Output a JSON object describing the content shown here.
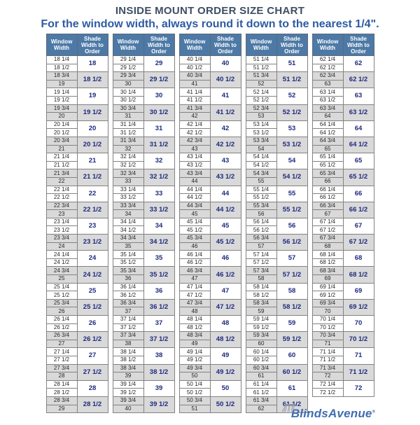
{
  "logo": {
    "name": "BlindsAvenue",
    "registered": "®"
  },
  "colors": {
    "title_text": "#3f4d63",
    "subtitle_text": "#2d5ba3",
    "header_bg": "#4d79a6",
    "header_text": "#ffffff",
    "row_alt_bg": "#d9d9d9",
    "row_bg": "#ffffff",
    "window_text": "#262626",
    "shade_text": "#1f2a7d",
    "border": "#828282",
    "logo_blue": "#3e6db1",
    "logo_roof_gray": "#b3b9c0"
  },
  "chart_data": {
    "type": "table",
    "title": "INSIDE MOUNT ORDER SIZE CHART",
    "note": "For the window width, always round it down to the nearest 1/4\".",
    "column_headers": [
      "Window Width",
      "Shade Width to Order"
    ],
    "layout": {
      "groups": 5,
      "rows_per_shade": 2,
      "alternating_shaded_rows": true
    },
    "columns": [
      {
        "rows": [
          {
            "w": [
              "18 1/4",
              "18 1/2"
            ],
            "s": "18"
          },
          {
            "w": [
              "18 3/4",
              "19"
            ],
            "s": "18 1/2"
          },
          {
            "w": [
              "19 1/4",
              "19 1/2"
            ],
            "s": "19"
          },
          {
            "w": [
              "19 3/4",
              "20"
            ],
            "s": "19 1/2"
          },
          {
            "w": [
              "20 1/4",
              "20 1/2"
            ],
            "s": "20"
          },
          {
            "w": [
              "20 3/4",
              "21"
            ],
            "s": "20 1/2"
          },
          {
            "w": [
              "21 1/4",
              "21 1/2"
            ],
            "s": "21"
          },
          {
            "w": [
              "21 3/4",
              "22"
            ],
            "s": "21 1/2"
          },
          {
            "w": [
              "22 1/4",
              "22 1/2"
            ],
            "s": "22"
          },
          {
            "w": [
              "22 3/4",
              "23"
            ],
            "s": "22 1/2"
          },
          {
            "w": [
              "23 1/4",
              "23 1/2"
            ],
            "s": "23"
          },
          {
            "w": [
              "23 3/4",
              "24"
            ],
            "s": "23 1/2"
          },
          {
            "w": [
              "24 1/4",
              "24 1/2"
            ],
            "s": "24"
          },
          {
            "w": [
              "24 3/4",
              "25"
            ],
            "s": "24 1/2"
          },
          {
            "w": [
              "25 1/4",
              "25 1/2"
            ],
            "s": "25"
          },
          {
            "w": [
              "25 3/4",
              "26"
            ],
            "s": "25 1/2"
          },
          {
            "w": [
              "26 1/4",
              "26 1/2"
            ],
            "s": "26"
          },
          {
            "w": [
              "26 3/4",
              "27"
            ],
            "s": "26 1/2"
          },
          {
            "w": [
              "27 1/4",
              "27 1/2"
            ],
            "s": "27"
          },
          {
            "w": [
              "27 3/4",
              "28"
            ],
            "s": "27 1/2"
          },
          {
            "w": [
              "28 1/4",
              "28 1/2"
            ],
            "s": "28"
          },
          {
            "w": [
              "28 3/4",
              "29"
            ],
            "s": "28 1/2"
          }
        ]
      },
      {
        "rows": [
          {
            "w": [
              "29 1/4",
              "29 1/2"
            ],
            "s": "29"
          },
          {
            "w": [
              "29 3/4",
              "30"
            ],
            "s": "29 1/2"
          },
          {
            "w": [
              "30 1/4",
              "30 1/2"
            ],
            "s": "30"
          },
          {
            "w": [
              "30 3/4",
              "31"
            ],
            "s": "30 1/2"
          },
          {
            "w": [
              "31 1/4",
              "31 1/2"
            ],
            "s": "31"
          },
          {
            "w": [
              "31 3/4",
              "32"
            ],
            "s": "31 1/2"
          },
          {
            "w": [
              "32 1/4",
              "32 1/2"
            ],
            "s": "32"
          },
          {
            "w": [
              "32 3/4",
              "33"
            ],
            "s": "32 1/2"
          },
          {
            "w": [
              "33 1/4",
              "33 1/2"
            ],
            "s": "33"
          },
          {
            "w": [
              "33 3/4",
              "34"
            ],
            "s": "33 1/2"
          },
          {
            "w": [
              "34 1/4",
              "34 1/2"
            ],
            "s": "34"
          },
          {
            "w": [
              "34 3/4",
              "35"
            ],
            "s": "34 1/2"
          },
          {
            "w": [
              "35 1/4",
              "35 1/2"
            ],
            "s": "35"
          },
          {
            "w": [
              "35 3/4",
              "36"
            ],
            "s": "35 1/2"
          },
          {
            "w": [
              "36 1/4",
              "36 1/2"
            ],
            "s": "36"
          },
          {
            "w": [
              "36 3/4",
              "37"
            ],
            "s": "36 1/2"
          },
          {
            "w": [
              "37 1/4",
              "37 1/2"
            ],
            "s": "37"
          },
          {
            "w": [
              "37 3/4",
              "38"
            ],
            "s": "37 1/2"
          },
          {
            "w": [
              "38 1/4",
              "38 1/2"
            ],
            "s": "38"
          },
          {
            "w": [
              "38 3/4",
              "39"
            ],
            "s": "38 1/2"
          },
          {
            "w": [
              "39 1/4",
              "39 1/2"
            ],
            "s": "39"
          },
          {
            "w": [
              "39 3/4",
              "40"
            ],
            "s": "39 1/2"
          }
        ]
      },
      {
        "rows": [
          {
            "w": [
              "40 1/4",
              "40 1/2"
            ],
            "s": "40"
          },
          {
            "w": [
              "40 3/4",
              "41"
            ],
            "s": "40 1/2"
          },
          {
            "w": [
              "41 1/4",
              "41 1/2"
            ],
            "s": "41"
          },
          {
            "w": [
              "41 3/4",
              "42"
            ],
            "s": "41 1/2"
          },
          {
            "w": [
              "42 1/4",
              "42 1/2"
            ],
            "s": "42"
          },
          {
            "w": [
              "42 3/4",
              "43"
            ],
            "s": "42 1/2"
          },
          {
            "w": [
              "43 1/4",
              "43 1/2"
            ],
            "s": "43"
          },
          {
            "w": [
              "43 3/4",
              "44"
            ],
            "s": "43 1/2"
          },
          {
            "w": [
              "44 1/4",
              "44 1/2"
            ],
            "s": "44"
          },
          {
            "w": [
              "44 3/4",
              "45"
            ],
            "s": "44 1/2"
          },
          {
            "w": [
              "45 1/4",
              "45 1/2"
            ],
            "s": "45"
          },
          {
            "w": [
              "45 3/4",
              "46"
            ],
            "s": "45 1/2"
          },
          {
            "w": [
              "46 1/4",
              "46 1/2"
            ],
            "s": "46"
          },
          {
            "w": [
              "46 3/4",
              "47"
            ],
            "s": "46 1/2"
          },
          {
            "w": [
              "47 1/4",
              "47 1/2"
            ],
            "s": "47"
          },
          {
            "w": [
              "47 3/4",
              "48"
            ],
            "s": "47 1/2"
          },
          {
            "w": [
              "48 1/4",
              "48 1/2"
            ],
            "s": "48"
          },
          {
            "w": [
              "48 3/4",
              "49"
            ],
            "s": "48 1/2"
          },
          {
            "w": [
              "49 1/4",
              "49 1/2"
            ],
            "s": "49"
          },
          {
            "w": [
              "49 3/4",
              "50"
            ],
            "s": "49 1/2"
          },
          {
            "w": [
              "50 1/4",
              "50 1/2"
            ],
            "s": "50"
          },
          {
            "w": [
              "50 3/4",
              "51"
            ],
            "s": "50 1/2"
          }
        ]
      },
      {
        "rows": [
          {
            "w": [
              "51 1/4",
              "51 1/2"
            ],
            "s": "51"
          },
          {
            "w": [
              "51 3/4",
              "52"
            ],
            "s": "51 1/2"
          },
          {
            "w": [
              "52 1/4",
              "52 1/2"
            ],
            "s": "52"
          },
          {
            "w": [
              "52 3/4",
              "53"
            ],
            "s": "52 1/2"
          },
          {
            "w": [
              "53 1/4",
              "53 1/2"
            ],
            "s": "53"
          },
          {
            "w": [
              "53 3/4",
              "54"
            ],
            "s": "53 1/2"
          },
          {
            "w": [
              "54 1/4",
              "54 1/2"
            ],
            "s": "54"
          },
          {
            "w": [
              "54 3/4",
              "55"
            ],
            "s": "54 1/2"
          },
          {
            "w": [
              "55 1/4",
              "55 1/2"
            ],
            "s": "55"
          },
          {
            "w": [
              "55 3/4",
              "56"
            ],
            "s": "55 1/2"
          },
          {
            "w": [
              "56 1/4",
              "56 1/2"
            ],
            "s": "56"
          },
          {
            "w": [
              "56 3/4",
              "57"
            ],
            "s": "56 1/2"
          },
          {
            "w": [
              "57 1/4",
              "57 1/2"
            ],
            "s": "57"
          },
          {
            "w": [
              "57 3/4",
              "58"
            ],
            "s": "57 1/2"
          },
          {
            "w": [
              "58 1/4",
              "58 1/2"
            ],
            "s": "58"
          },
          {
            "w": [
              "58 3/4",
              "59"
            ],
            "s": "58 1/2"
          },
          {
            "w": [
              "59 1/4",
              "59 1/2"
            ],
            "s": "59"
          },
          {
            "w": [
              "59 3/4",
              "60"
            ],
            "s": "59 1/2"
          },
          {
            "w": [
              "60 1/4",
              "60 1/2"
            ],
            "s": "60"
          },
          {
            "w": [
              "60 3/4",
              "61"
            ],
            "s": "60 1/2"
          },
          {
            "w": [
              "61 1/4",
              "61 1/2"
            ],
            "s": "61"
          },
          {
            "w": [
              "61 3/4",
              "62"
            ],
            "s": "61 1/2"
          }
        ]
      },
      {
        "rows": [
          {
            "w": [
              "62 1/4",
              "62 1/2"
            ],
            "s": "62"
          },
          {
            "w": [
              "62 3/4",
              "63"
            ],
            "s": "62 1/2"
          },
          {
            "w": [
              "63 1/4",
              "63 1/2"
            ],
            "s": "63"
          },
          {
            "w": [
              "63 3/4",
              "64"
            ],
            "s": "63 1/2"
          },
          {
            "w": [
              "64 1/4",
              "64 1/2"
            ],
            "s": "64"
          },
          {
            "w": [
              "64 3/4",
              "65"
            ],
            "s": "64 1/2"
          },
          {
            "w": [
              "65 1/4",
              "65 1/2"
            ],
            "s": "65"
          },
          {
            "w": [
              "65 3/4",
              "66"
            ],
            "s": "65 1/2"
          },
          {
            "w": [
              "66 1/4",
              "66 1/2"
            ],
            "s": "66"
          },
          {
            "w": [
              "66 3/4",
              "67"
            ],
            "s": "66 1/2"
          },
          {
            "w": [
              "67 1/4",
              "67 1/2"
            ],
            "s": "67"
          },
          {
            "w": [
              "67 3/4",
              "68"
            ],
            "s": "67 1/2"
          },
          {
            "w": [
              "68 1/4",
              "68 1/2"
            ],
            "s": "68"
          },
          {
            "w": [
              "68 3/4",
              "69"
            ],
            "s": "68 1/2"
          },
          {
            "w": [
              "69 1/4",
              "69 1/2"
            ],
            "s": "69"
          },
          {
            "w": [
              "69 3/4",
              "70"
            ],
            "s": "69 1/2"
          },
          {
            "w": [
              "70 1/4",
              "70 1/2"
            ],
            "s": "70"
          },
          {
            "w": [
              "70 3/4",
              "71"
            ],
            "s": "70 1/2"
          },
          {
            "w": [
              "71 1/4",
              "71 1/2"
            ],
            "s": "71"
          },
          {
            "w": [
              "71 3/4",
              "72"
            ],
            "s": "71 1/2"
          },
          {
            "w": [
              "72 1/4",
              "72 1/2"
            ],
            "s": "72"
          }
        ]
      }
    ]
  }
}
